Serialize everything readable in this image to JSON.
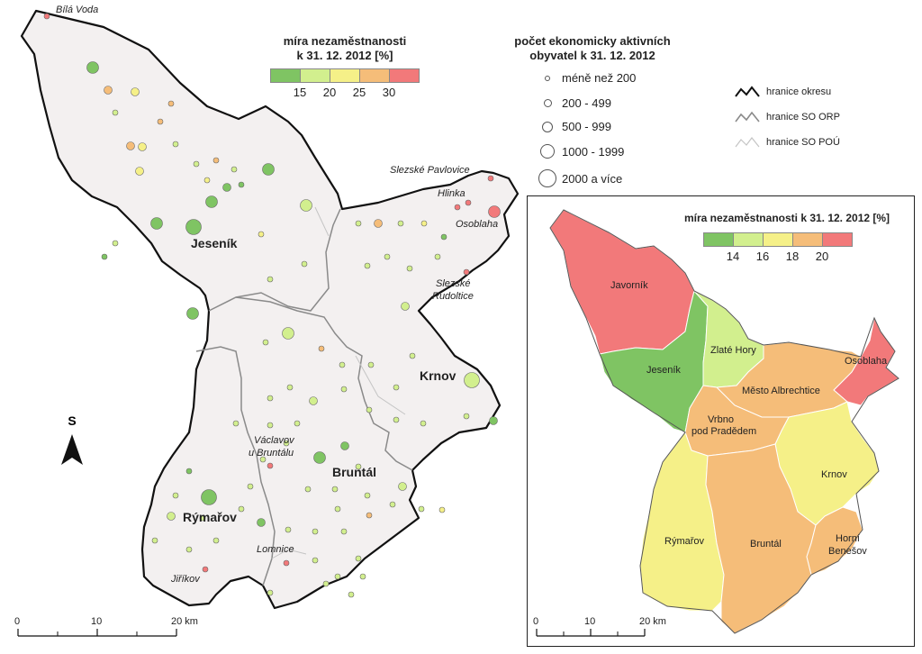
{
  "main_legend": {
    "rate_title_line1": "míra nezaměstnanosti",
    "rate_title_line2": "k 31. 12. 2012 [%]",
    "rate_colors": [
      "#7fc463",
      "#d2ef8e",
      "#f5f088",
      "#f5bd79",
      "#f2797a"
    ],
    "rate_ticks": [
      "15",
      "20",
      "25",
      "30"
    ],
    "pop_title_line1": "počet ekonomicky aktivních",
    "pop_title_line2": "obyvatel k 31. 12. 2012",
    "pop_classes": [
      "méně než 200",
      "200 - 499",
      "500 - 999",
      "1000 - 1999",
      "2000 a více"
    ]
  },
  "boundary_legend": {
    "okres": "hranice okresu",
    "orp": "hranice SO ORP",
    "pou": "hranice SO POÚ"
  },
  "main_map": {
    "orp_towns": [
      "Jeseník",
      "Krnov",
      "Bruntál",
      "Rýmařov"
    ],
    "places": [
      "Bílá Voda",
      "Slezské Pavlovice",
      "Hlinka",
      "Osoblaha",
      "Slezské",
      "Rudoltice",
      "Václavov",
      "u Bruntálu",
      "Lomnice",
      "Jiříkov"
    ],
    "north_label": "S",
    "scale_ticks": [
      "0",
      "10",
      "20 km"
    ]
  },
  "inset": {
    "title": "míra nezaměstnanosti k 31. 12. 2012 [%]",
    "colors": [
      "#7fc463",
      "#d2ef8e",
      "#f5f088",
      "#f5bd79",
      "#f2797a"
    ],
    "ticks": [
      "14",
      "16",
      "18",
      "20"
    ],
    "regions": [
      "Javorník",
      "Zlaté Hory",
      "Jeseník",
      "Osoblaha",
      "Město Albrechtice",
      "Vrbno",
      "pod Pradědem",
      "Krnov",
      "Rýmařov",
      "Bruntál",
      "Horní",
      "Benešov"
    ],
    "scale_ticks": [
      "0",
      "10",
      "20 km"
    ]
  },
  "colors": {
    "district_fill": "#f3f0f0",
    "okres_line": "#111111",
    "orp_line": "#8a8a8a",
    "pou_line": "#bdbdbd"
  }
}
